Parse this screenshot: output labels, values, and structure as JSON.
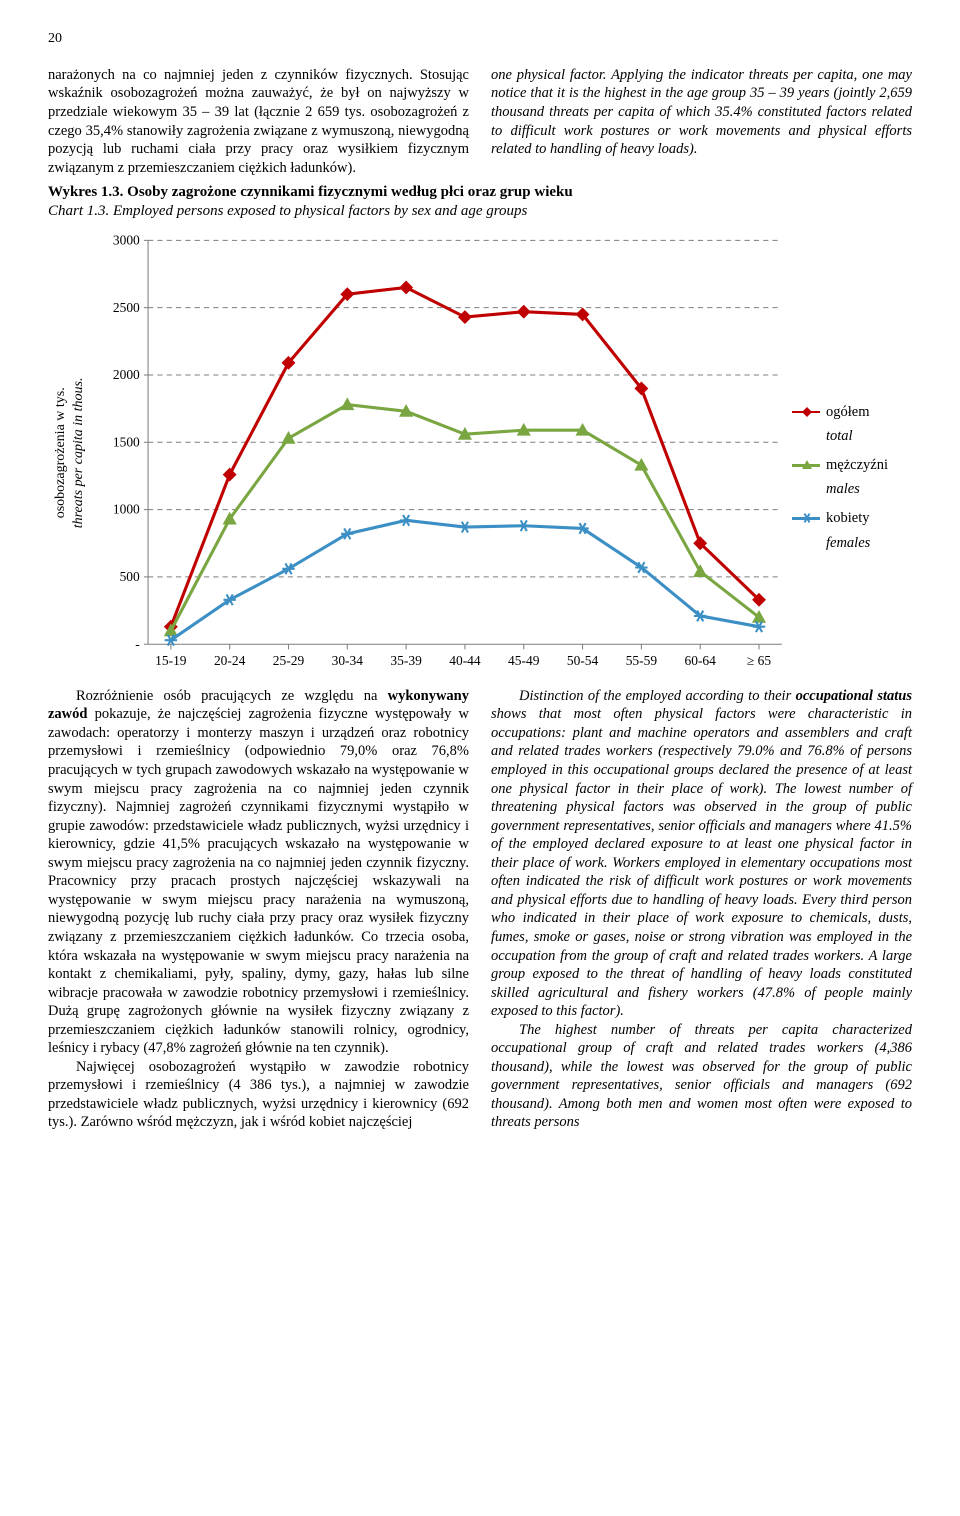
{
  "page_number": "20",
  "paragraphs": {
    "top_left": "narażonych na co najmniej jeden z czynników fizycznych. Stosując wskaźnik osobozagrożeń można zauważyć, że był on najwyższy w przedziale wiekowym 35 – 39 lat (łącznie 2 659 tys. osobozagrożeń z czego 35,4% stanowiły zagrożenia związane z wymuszoną, niewygodną pozycją lub ruchami ciała przy pracy oraz wysiłkiem fizycznym związanym z przemieszczaniem ciężkich ładunków).",
    "top_right": "one physical factor. Applying the indicator threats per capita, one may notice that it is the highest in the age group 35 – 39 years (jointly 2,659 thousand threats per capita of which 35.4% constituted factors related to difficult work postures or work movements and physical efforts related to handling of heavy loads).",
    "bottom_left_1": "Rozróżnienie osób pracujących ze względu na <b>wykonywany zawód</b> pokazuje, że najczęściej zagrożenia fizyczne występowały w zawodach: operatorzy i monterzy maszyn i urządzeń oraz robotnicy przemysłowi i rzemieślnicy (odpowiednio 79,0% oraz 76,8% pracujących w tych grupach zawodowych wskazało na występowanie w swym miejscu pracy zagrożenia na co najmniej jeden czynnik fizyczny). Najmniej zagrożeń czynnikami fizycznymi wystąpiło w grupie zawodów: przedstawiciele władz publicznych, wyżsi urzędnicy i kierownicy, gdzie 41,5% pracujących wskazało na występowanie w swym miejscu pracy zagrożenia na co najmniej jeden czynnik fizyczny. Pracownicy przy pracach prostych najczęściej wskazywali na występowanie w swym miejscu pracy narażenia na wymuszoną, niewygodną pozycję lub ruchy ciała przy pracy oraz wysiłek fizyczny związany z przemieszczaniem ciężkich ładunków. Co trzecia osoba, która wskazała na występowanie w swym miejscu pracy narażenia na kontakt z chemikaliami, pyły, spaliny, dymy, gazy, hałas lub silne wibracje pracowała w zawodzie robotnicy przemysłowi i rzemieślnicy. Dużą grupę zagrożonych głównie na wysiłek fizyczny związany z przemieszczaniem ciężkich ładunków stanowili rolnicy, ogrodnicy, leśnicy i rybacy (47,8% zagrożeń głównie na ten czynnik).",
    "bottom_left_2": "Najwięcej osobozagrożeń wystąpiło w zawodzie robotnicy przemysłowi i rzemieślnicy (4 386 tys.), a najmniej w zawodzie przedstawiciele władz publicznych, wyżsi urzędnicy i kierownicy (692 tys.). Zarówno wśród mężczyzn, jak i wśród kobiet najczęściej",
    "bottom_right_1": "Distinction of the employed according to their <b style='font-style:italic'>occupational status</b> shows that most often physical factors were characteristic in occupations: plant and machine operators and assemblers and craft and related trades workers (respectively 79.0% and 76.8% of persons employed in this occupational groups declared the presence of at least one physical factor in their place of work). The lowest number of threatening physical factors was observed in the group of public government representatives, senior officials and managers where 41.5% of the employed declared exposure to at least one physical factor in their place of work. Workers employed in elementary occupations most often indicated the risk of difficult work postures or work movements and physical efforts due to handling of heavy loads. Every third person who indicated in their place of work exposure to chemicals, dusts, fumes, smoke or gases, noise or strong vibration was employed in the occupation from the group of craft and related trades workers. A large group exposed to the threat of handling of heavy loads constituted skilled agricultural and fishery workers (47.8% of people mainly exposed to this factor).",
    "bottom_right_2": "The highest number of threats per capita characterized occupational group of craft and related trades workers (4,386 thousand), while the lowest was observed for the group of public government representatives, senior officials and managers (692 thousand). Among both men and women most often were exposed to threats persons"
  },
  "chart": {
    "title_pl": "Wykres 1.3. Osoby zagrożone czynnikami fizycznymi według płci oraz grup wieku",
    "title_en": "Chart 1.3. Employed persons exposed to physical factors by sex and age groups",
    "y_label_pl": "osobozagrożenia w tys.",
    "y_label_en": "threats per capita in thous.",
    "x_categories": [
      "15-19",
      "20-24",
      "25-29",
      "30-34",
      "35-39",
      "40-44",
      "45-49",
      "50-54",
      "55-59",
      "60-64",
      "≥ 65"
    ],
    "y_ticks": [
      "-",
      "500",
      "1000",
      "1500",
      "2000",
      "2500",
      "3000"
    ],
    "ylim": [
      0,
      3000
    ],
    "series": [
      {
        "key": "total",
        "label_pl": "ogółem",
        "label_en": "total",
        "color": "#c00000",
        "marker": "diamond",
        "values": [
          130,
          1260,
          2090,
          2600,
          2650,
          2430,
          2470,
          2450,
          1900,
          750,
          330
        ]
      },
      {
        "key": "males",
        "label_pl": "mężczyźni",
        "label_en": "males",
        "color": "#7aa642",
        "marker": "triangle",
        "values": [
          100,
          930,
          1530,
          1780,
          1730,
          1560,
          1590,
          1590,
          1330,
          540,
          200
        ]
      },
      {
        "key": "females",
        "label_pl": "kobiety",
        "label_en": "females",
        "color": "#3b8fc4",
        "marker": "star",
        "values": [
          30,
          330,
          560,
          820,
          920,
          870,
          880,
          860,
          570,
          210,
          130
        ]
      }
    ],
    "grid_color": "#7f7f7f",
    "axis_color": "#7f7f7f",
    "background": "#ffffff",
    "line_width": 3,
    "marker_size": 6
  },
  "legend": {
    "items": [
      {
        "series": 0,
        "label_key": "label_pl"
      },
      {
        "series": 0,
        "label_key": "label_en",
        "italic": true
      },
      {
        "series": 1,
        "label_key": "label_pl"
      },
      {
        "series": 1,
        "label_key": "label_en",
        "italic": true
      },
      {
        "series": 2,
        "label_key": "label_pl"
      },
      {
        "series": 2,
        "label_key": "label_en",
        "italic": true
      }
    ]
  }
}
